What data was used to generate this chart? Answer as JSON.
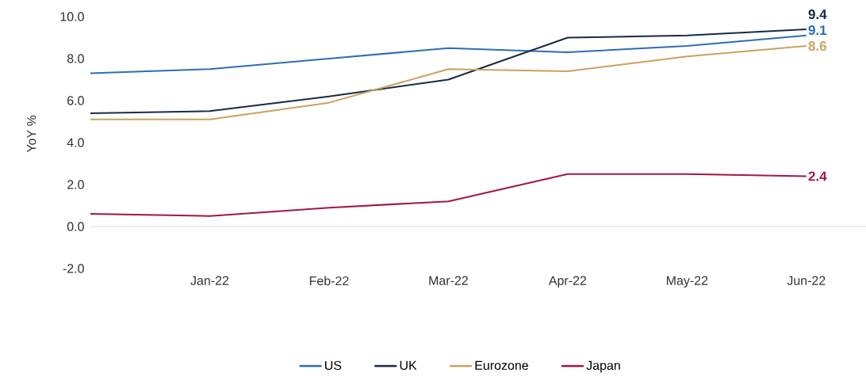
{
  "chart_data": {
    "type": "line",
    "ylabel": "YoY %",
    "categories": [
      null,
      "Jan-22",
      "Feb-22",
      "Mar-22",
      "Apr-22",
      "May-22",
      "Jun-22"
    ],
    "ylim": [
      -2,
      10
    ],
    "yticks": [
      {
        "value": -2,
        "label": "-2.0"
      },
      {
        "value": 0,
        "label": "0.0"
      },
      {
        "value": 2,
        "label": "2.0"
      },
      {
        "value": 4,
        "label": "4.0"
      },
      {
        "value": 6,
        "label": "6.0"
      },
      {
        "value": 8,
        "label": "8.0"
      },
      {
        "value": 10,
        "label": "10.0"
      }
    ],
    "series": [
      {
        "name": "US",
        "color": "#2e6db4",
        "values": [
          7.3,
          7.5,
          8.0,
          8.5,
          8.3,
          8.6,
          9.1
        ],
        "value_labels": [
          null,
          null,
          null,
          null,
          null,
          null,
          "9.1"
        ]
      },
      {
        "name": "UK",
        "color": "#1b2a44",
        "values": [
          5.4,
          5.5,
          6.2,
          7.0,
          9.0,
          9.1,
          9.4
        ],
        "value_labels": [
          null,
          null,
          null,
          null,
          null,
          null,
          "9.4"
        ]
      },
      {
        "name": "Eurozone",
        "color": "#c9a25e",
        "values": [
          5.1,
          5.1,
          5.9,
          7.5,
          7.4,
          8.1,
          8.6
        ],
        "value_labels": [
          null,
          null,
          null,
          null,
          null,
          null,
          "8.6"
        ]
      },
      {
        "name": "Japan",
        "color": "#a3154a",
        "values": [
          0.6,
          0.5,
          0.9,
          1.2,
          2.5,
          2.5,
          2.4
        ],
        "value_labels": [
          null,
          null,
          null,
          null,
          null,
          null,
          "2.4"
        ]
      }
    ],
    "ref_lines": [
      {
        "axis": "y",
        "value": 0,
        "color": "#d9d9d9"
      }
    ],
    "legend": "bottom"
  }
}
